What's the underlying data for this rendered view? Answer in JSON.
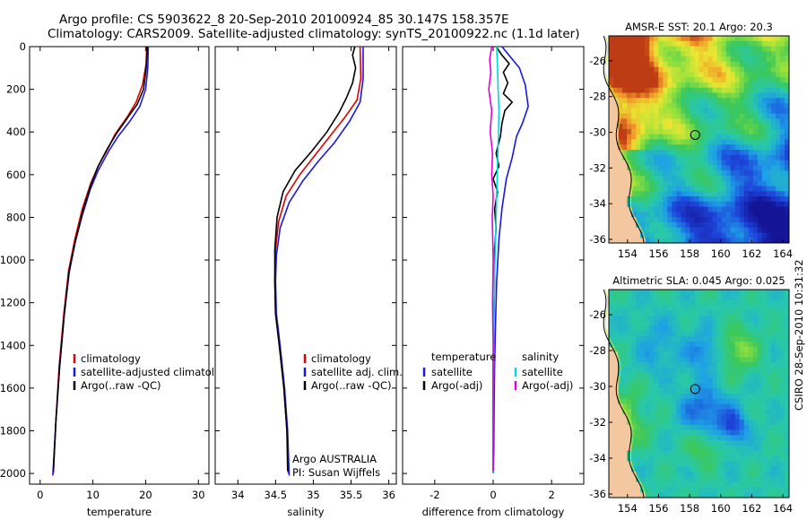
{
  "header": {
    "line1": "Argo profile: CS 5903622_8 20-Sep-2010 20100924_85 30.147S 158.357E",
    "line2": "Climatology: CARS2009. Satellite-adjusted climatology: synTS_20100922.nc (1.1d later)"
  },
  "footer": {
    "credit": "CSIRO 28-Sep-2010 10:31:32"
  },
  "colors": {
    "climatology": "#e00000",
    "satellite": "#1818e0",
    "argo": "#000000",
    "satellite_diff": "#00d8e0",
    "argo_diff": "#e000e0",
    "land": "#f3c8a0",
    "coast": "#c8e838"
  },
  "chart_data": [
    {
      "type": "line",
      "name": "temperature-panel",
      "xlabel": "temperature",
      "ylabel": "",
      "xlim": [
        -2,
        32
      ],
      "ylim": [
        2050,
        0
      ],
      "xticks": [
        0,
        10,
        20,
        30
      ],
      "yticks": [
        0,
        200,
        400,
        600,
        800,
        1000,
        1200,
        1400,
        1600,
        1800,
        2000
      ],
      "legend": [
        "climatology",
        "satellite-adjusted climatology",
        "Argo(..raw -QC)"
      ],
      "series": [
        {
          "name": "climatology",
          "color_key": "climatology",
          "points": [
            [
              20.2,
              0
            ],
            [
              20.1,
              80
            ],
            [
              19.4,
              180
            ],
            [
              18.2,
              260
            ],
            [
              16.5,
              330
            ],
            [
              14.2,
              410
            ],
            [
              12.8,
              480
            ],
            [
              11.0,
              560
            ],
            [
              9.6,
              640
            ],
            [
              8.0,
              760
            ],
            [
              6.6,
              900
            ],
            [
              5.4,
              1050
            ],
            [
              4.5,
              1250
            ],
            [
              3.6,
              1500
            ],
            [
              3.0,
              1750
            ],
            [
              2.5,
              2000
            ]
          ]
        },
        {
          "name": "satellite-adjusted climatology",
          "color_key": "satellite",
          "points": [
            [
              20.5,
              0
            ],
            [
              20.4,
              100
            ],
            [
              20.0,
              200
            ],
            [
              18.9,
              280
            ],
            [
              17.0,
              350
            ],
            [
              14.8,
              420
            ],
            [
              13.0,
              490
            ],
            [
              11.0,
              580
            ],
            [
              9.5,
              670
            ],
            [
              8.0,
              790
            ],
            [
              6.6,
              920
            ],
            [
              5.5,
              1060
            ],
            [
              4.6,
              1250
            ],
            [
              3.7,
              1500
            ],
            [
              3.0,
              1750
            ],
            [
              2.4,
              2010
            ]
          ]
        },
        {
          "name": "Argo(..raw -QC)",
          "color_key": "argo",
          "points": [
            [
              20.3,
              0
            ],
            [
              20.1,
              100
            ],
            [
              19.6,
              200
            ],
            [
              18.4,
              270
            ],
            [
              16.4,
              340
            ],
            [
              14.4,
              410
            ],
            [
              12.7,
              480
            ],
            [
              11.0,
              560
            ],
            [
              9.6,
              650
            ],
            [
              8.1,
              770
            ],
            [
              6.7,
              910
            ],
            [
              5.5,
              1050
            ],
            [
              4.6,
              1250
            ],
            [
              3.7,
              1500
            ],
            [
              3.0,
              1750
            ],
            [
              2.5,
              1990
            ]
          ]
        }
      ]
    },
    {
      "type": "line",
      "name": "salinity-panel",
      "xlabel": "salinity",
      "ylabel": "",
      "xlim": [
        33.7,
        36.1
      ],
      "ylim": [
        2050,
        0
      ],
      "xticks": [
        34,
        34.5,
        35,
        35.5,
        36
      ],
      "legend": [
        "climatology",
        "satellite adj. clim.",
        "Argo(..raw -QC)"
      ],
      "annotation": [
        "Argo AUSTRALIA",
        "PI: Susan Wijffels"
      ],
      "series": [
        {
          "name": "climatology",
          "color_key": "climatology",
          "points": [
            [
              35.62,
              0
            ],
            [
              35.63,
              150
            ],
            [
              35.58,
              250
            ],
            [
              35.42,
              330
            ],
            [
              35.22,
              420
            ],
            [
              35.02,
              510
            ],
            [
              34.82,
              600
            ],
            [
              34.64,
              700
            ],
            [
              34.54,
              820
            ],
            [
              34.5,
              950
            ],
            [
              34.49,
              1100
            ],
            [
              34.5,
              1250
            ],
            [
              34.55,
              1400
            ],
            [
              34.61,
              1600
            ],
            [
              34.65,
              1800
            ],
            [
              34.67,
              2000
            ]
          ]
        },
        {
          "name": "satellite adj. clim.",
          "color_key": "satellite",
          "points": [
            [
              35.66,
              0
            ],
            [
              35.66,
              150
            ],
            [
              35.62,
              260
            ],
            [
              35.48,
              350
            ],
            [
              35.28,
              450
            ],
            [
              35.06,
              540
            ],
            [
              34.86,
              630
            ],
            [
              34.68,
              730
            ],
            [
              34.56,
              850
            ],
            [
              34.51,
              980
            ],
            [
              34.5,
              1100
            ],
            [
              34.51,
              1250
            ],
            [
              34.56,
              1400
            ],
            [
              34.62,
              1600
            ],
            [
              34.66,
              1800
            ],
            [
              34.68,
              2010
            ]
          ]
        },
        {
          "name": "Argo(..raw -QC)",
          "color_key": "argo",
          "points": [
            [
              35.55,
              0
            ],
            [
              35.52,
              40
            ],
            [
              35.56,
              100
            ],
            [
              35.52,
              170
            ],
            [
              35.44,
              240
            ],
            [
              35.34,
              310
            ],
            [
              35.18,
              400
            ],
            [
              34.98,
              490
            ],
            [
              34.76,
              580
            ],
            [
              34.6,
              680
            ],
            [
              34.52,
              800
            ],
            [
              34.49,
              950
            ],
            [
              34.49,
              1100
            ],
            [
              34.5,
              1250
            ],
            [
              34.55,
              1400
            ],
            [
              34.61,
              1600
            ],
            [
              34.65,
              1800
            ],
            [
              34.66,
              1990
            ]
          ]
        }
      ]
    },
    {
      "type": "line",
      "name": "difference-panel",
      "xlabel": "difference from climatology",
      "ylabel": "",
      "xlim": [
        -3.1,
        3.1
      ],
      "ylim": [
        2050,
        0
      ],
      "xticks": [
        -2,
        0,
        2
      ],
      "legend": [
        {
          "group": "temperature",
          "items": [
            "satellite",
            "Argo(-adj)"
          ]
        },
        {
          "group": "salinity",
          "items": [
            "satellite",
            "Argo(-adj)"
          ]
        }
      ],
      "series": [
        {
          "name": "temperature satellite",
          "color_key": "satellite",
          "points": [
            [
              0.3,
              0
            ],
            [
              0.9,
              100
            ],
            [
              1.1,
              180
            ],
            [
              1.2,
              280
            ],
            [
              1.0,
              360
            ],
            [
              0.8,
              420
            ],
            [
              0.65,
              520
            ],
            [
              0.45,
              620
            ],
            [
              0.3,
              760
            ],
            [
              0.2,
              900
            ],
            [
              0.12,
              1100
            ],
            [
              0.08,
              1300
            ],
            [
              0.05,
              1500
            ],
            [
              0.03,
              1700
            ],
            [
              0.02,
              1900
            ],
            [
              0.0,
              2000
            ]
          ]
        },
        {
          "name": "temperature Argo(-adj)",
          "color_key": "argo",
          "points": [
            [
              0.1,
              0
            ],
            [
              0.3,
              40
            ],
            [
              0.55,
              80
            ],
            [
              0.35,
              120
            ],
            [
              0.5,
              170
            ],
            [
              0.35,
              220
            ],
            [
              0.65,
              260
            ],
            [
              0.4,
              300
            ],
            [
              0.3,
              360
            ],
            [
              0.25,
              420
            ],
            [
              0.1,
              500
            ],
            [
              0.2,
              560
            ],
            [
              0.0,
              620
            ],
            [
              0.15,
              680
            ],
            [
              0.05,
              760
            ],
            [
              0.1,
              850
            ],
            [
              0.05,
              950
            ],
            [
              0.05,
              1100
            ],
            [
              0.02,
              1300
            ],
            [
              0.0,
              1500
            ],
            [
              0.0,
              1700
            ],
            [
              0.0,
              1990
            ]
          ]
        },
        {
          "name": "salinity satellite",
          "color_key": "satellite_diff",
          "points": [
            [
              0.12,
              0
            ],
            [
              0.15,
              100
            ],
            [
              0.17,
              200
            ],
            [
              0.2,
              300
            ],
            [
              0.18,
              400
            ],
            [
              0.16,
              500
            ],
            [
              0.14,
              600
            ],
            [
              0.12,
              700
            ],
            [
              0.1,
              800
            ],
            [
              0.06,
              1000
            ],
            [
              0.03,
              1200
            ],
            [
              0.02,
              1400
            ],
            [
              0.01,
              1600
            ],
            [
              0.0,
              1800
            ],
            [
              0.0,
              2000
            ]
          ]
        },
        {
          "name": "salinity Argo(-adj)",
          "color_key": "argo_diff",
          "points": [
            [
              -0.05,
              0
            ],
            [
              -0.12,
              60
            ],
            [
              -0.08,
              120
            ],
            [
              -0.15,
              200
            ],
            [
              -0.05,
              300
            ],
            [
              -0.1,
              400
            ],
            [
              -0.02,
              500
            ],
            [
              -0.05,
              600
            ],
            [
              0.0,
              700
            ],
            [
              -0.03,
              800
            ],
            [
              0.0,
              1000
            ],
            [
              -0.02,
              1200
            ],
            [
              0.0,
              1400
            ],
            [
              0.0,
              1600
            ],
            [
              0.0,
              1800
            ],
            [
              0.0,
              1990
            ]
          ]
        }
      ]
    },
    {
      "type": "heatmap",
      "name": "sst-map",
      "title": "AMSR-E SST: 20.1 Argo: 20.3",
      "xlim": [
        152.8,
        164.4
      ],
      "ylim": [
        -36.2,
        -24.6
      ],
      "xticks": [
        154,
        156,
        158,
        160,
        162,
        164
      ],
      "yticks": [
        -26,
        -28,
        -30,
        -32,
        -34,
        -36
      ],
      "float_position": {
        "lon": 158.357,
        "lat": -30.147
      }
    },
    {
      "type": "heatmap",
      "name": "sla-map",
      "title": "Altimetric SLA: 0.045 Argo: 0.025",
      "xlim": [
        152.8,
        164.4
      ],
      "ylim": [
        -36.2,
        -24.6
      ],
      "xticks": [
        154,
        156,
        158,
        160,
        162,
        164
      ],
      "yticks": [
        -26,
        -28,
        -30,
        -32,
        -34,
        -36
      ],
      "float_position": {
        "lon": 158.357,
        "lat": -30.147
      }
    }
  ]
}
